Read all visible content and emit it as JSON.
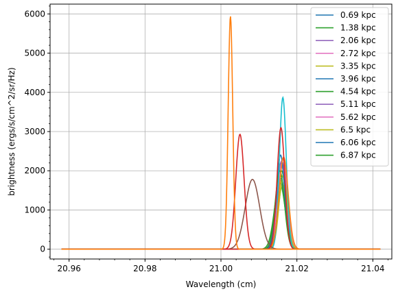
{
  "chart_data": {
    "type": "line",
    "xlabel": "Wavelength (cm)",
    "ylabel": "brightness (ergs/s/cm^2/sr/Hz)",
    "xlim": [
      20.955,
      21.045
    ],
    "ylim": [
      -250,
      6250
    ],
    "data_xrange": [
      20.958,
      21.042
    ],
    "xticks": [
      20.96,
      20.98,
      21.0,
      21.02,
      21.04
    ],
    "xtick_labels": [
      "20.96",
      "20.98",
      "21.00",
      "21.02",
      "21.04"
    ],
    "yticks": [
      0,
      1000,
      2000,
      3000,
      4000,
      5000,
      6000
    ],
    "ytick_labels": [
      "0",
      "1000",
      "2000",
      "3000",
      "4000",
      "5000",
      "6000"
    ],
    "grid": true,
    "legend_position": "top-right",
    "series": [
      {
        "name": "0.69 kpc",
        "color": "#1f77b4",
        "center": 21.0158,
        "width": 0.0012,
        "peak": 1800
      },
      {
        "name": "1.38 kpc",
        "color": "#2ca02c",
        "center": 21.0155,
        "width": 0.0014,
        "peak": 1700
      },
      {
        "name": "2.06 kpc",
        "color": "#9467bd",
        "center": 21.016,
        "width": 0.0013,
        "peak": 2250
      },
      {
        "name": "2.72 kpc",
        "color": "#e377c2",
        "center": 21.0163,
        "width": 0.0012,
        "peak": 2300
      },
      {
        "name": "3.35 kpc",
        "color": "#bcbd22",
        "center": 21.0162,
        "width": 0.0011,
        "peak": 1650
      },
      {
        "name": "3.96 kpc",
        "color": "#1f77b4",
        "center": 21.0157,
        "width": 0.0012,
        "peak": 1750
      },
      {
        "name": "4.54 kpc",
        "color": "#2ca02c",
        "center": 21.016,
        "width": 0.0011,
        "peak": 2000
      },
      {
        "name": "5.11 kpc",
        "color": "#9467bd",
        "center": 21.0158,
        "width": 0.0013,
        "peak": 2200
      },
      {
        "name": "5.62 kpc",
        "color": "#e377c2",
        "center": 21.0161,
        "width": 0.0012,
        "peak": 2100
      },
      {
        "name": "6.5 kpc",
        "color": "#bcbd22",
        "center": 21.0164,
        "width": 0.0011,
        "peak": 1900
      },
      {
        "name": "6.06 kpc",
        "color": "#1f77b4",
        "center": 21.0157,
        "width": 0.0011,
        "peak": 2400
      },
      {
        "name": "6.87 kpc",
        "color": "#2ca02c",
        "center": 21.0155,
        "width": 0.0012,
        "peak": 2000
      },
      {
        "name": "",
        "color": "#17becf",
        "center": 21.0163,
        "width": 0.0009,
        "peak": 3870
      },
      {
        "name": "",
        "color": "#ff7f0e",
        "center": 21.0165,
        "width": 0.0012,
        "peak": 2350
      },
      {
        "name": "",
        "color": "#8c564b",
        "center": 21.0083,
        "width": 0.0019,
        "peak": 1780
      },
      {
        "name": "",
        "color": "#d62728",
        "center": 21.0158,
        "width": 0.001,
        "peak": 3100
      },
      {
        "name": "",
        "color": "#d62728",
        "center": 21.005,
        "width": 0.0011,
        "peak": 2930
      },
      {
        "name": "",
        "color": "#ff7f0e",
        "center": 21.0025,
        "width": 0.0006,
        "peak": 5940
      }
    ]
  }
}
